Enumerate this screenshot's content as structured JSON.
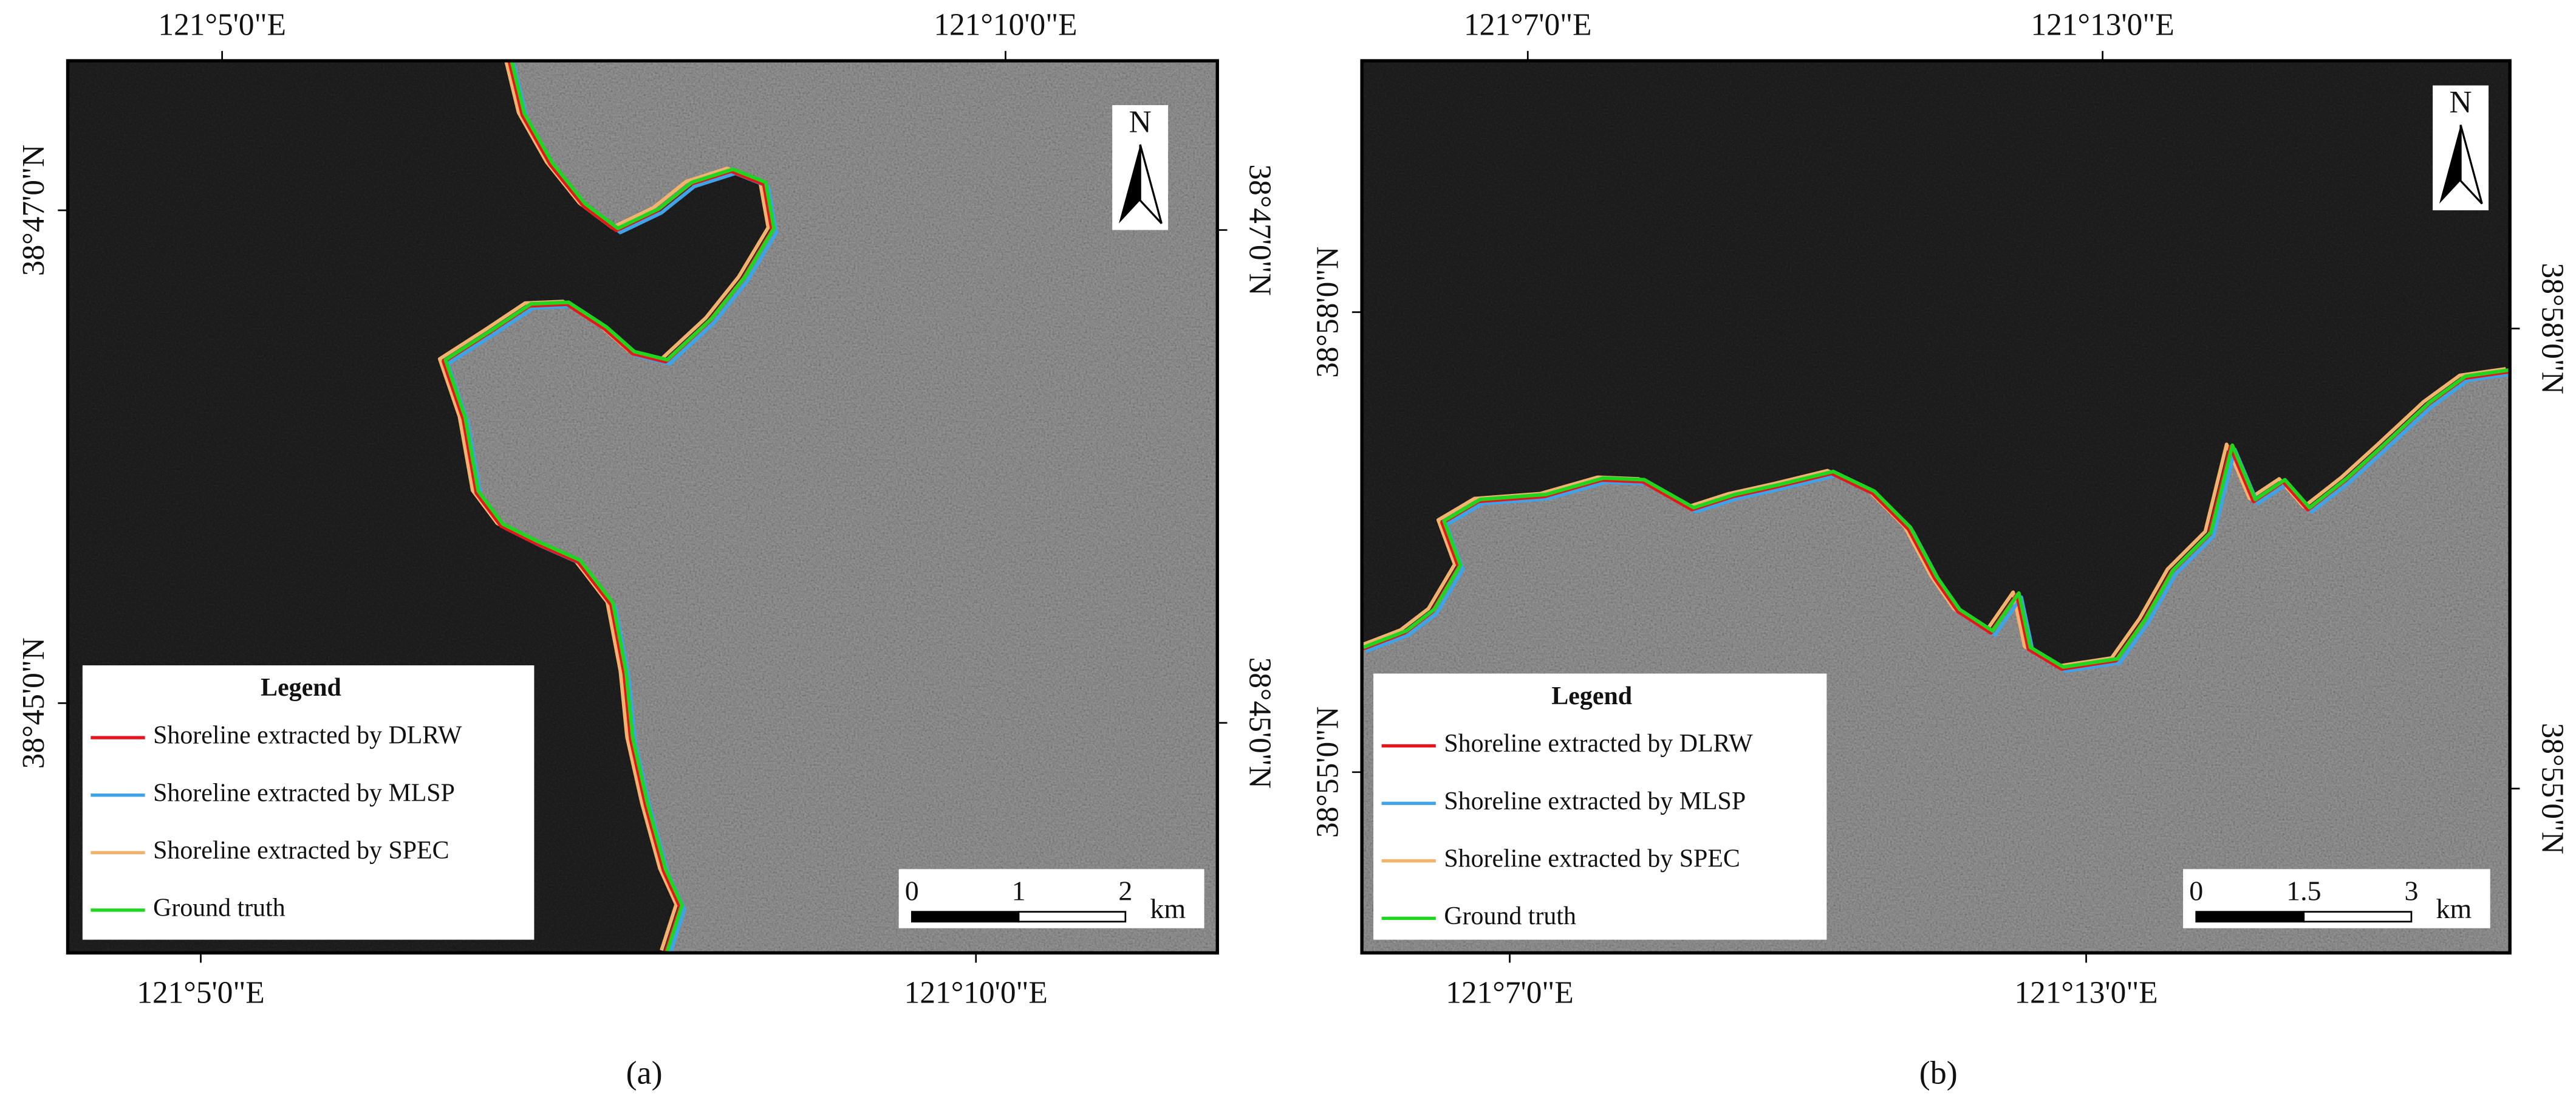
{
  "panels": [
    {
      "label": "(a)",
      "top_labels": [
        "121°5'0\"E",
        "121°10'0\"E"
      ],
      "bottom_labels": [
        "121°5'0\"E",
        "121°10'0\"E"
      ],
      "left_labels": [
        "38°47'0\"N",
        "38°45'0\"N"
      ],
      "right_labels": [
        "38°47'0\"N",
        "38°45'0\"N"
      ],
      "north": "N",
      "legend": {
        "title": "Legend",
        "items": [
          {
            "label": "Shoreline extracted by DLRW",
            "color": "#e8141c"
          },
          {
            "label": "Shoreline extracted by MLSP",
            "color": "#3fa3e8"
          },
          {
            "label": "Shoreline extracted by SPEC",
            "color": "#f2b36e"
          },
          {
            "label": "Ground truth",
            "color": "#1fd61f"
          }
        ]
      },
      "scale": {
        "ticks": [
          "0",
          "1",
          "2"
        ],
        "unit": "km"
      }
    },
    {
      "label": "(b)",
      "top_labels": [
        "121°7'0\"E",
        "121°13'0\"E"
      ],
      "bottom_labels": [
        "121°7'0\"E",
        "121°13'0\"E"
      ],
      "left_labels": [
        "38°58'0\"N",
        "38°55'0\"N"
      ],
      "right_labels": [
        "38°58'0\"N",
        "38°55'0\"N"
      ],
      "north": "N",
      "legend": {
        "title": "Legend",
        "items": [
          {
            "label": "Shoreline extracted by DLRW",
            "color": "#e8141c"
          },
          {
            "label": "Shoreline extracted by MLSP",
            "color": "#3fa3e8"
          },
          {
            "label": "Shoreline extracted by SPEC",
            "color": "#f2b36e"
          },
          {
            "label": "Ground truth",
            "color": "#1fd61f"
          }
        ]
      },
      "scale": {
        "ticks": [
          "0",
          "1.5",
          "3"
        ],
        "unit": "km"
      }
    }
  ]
}
